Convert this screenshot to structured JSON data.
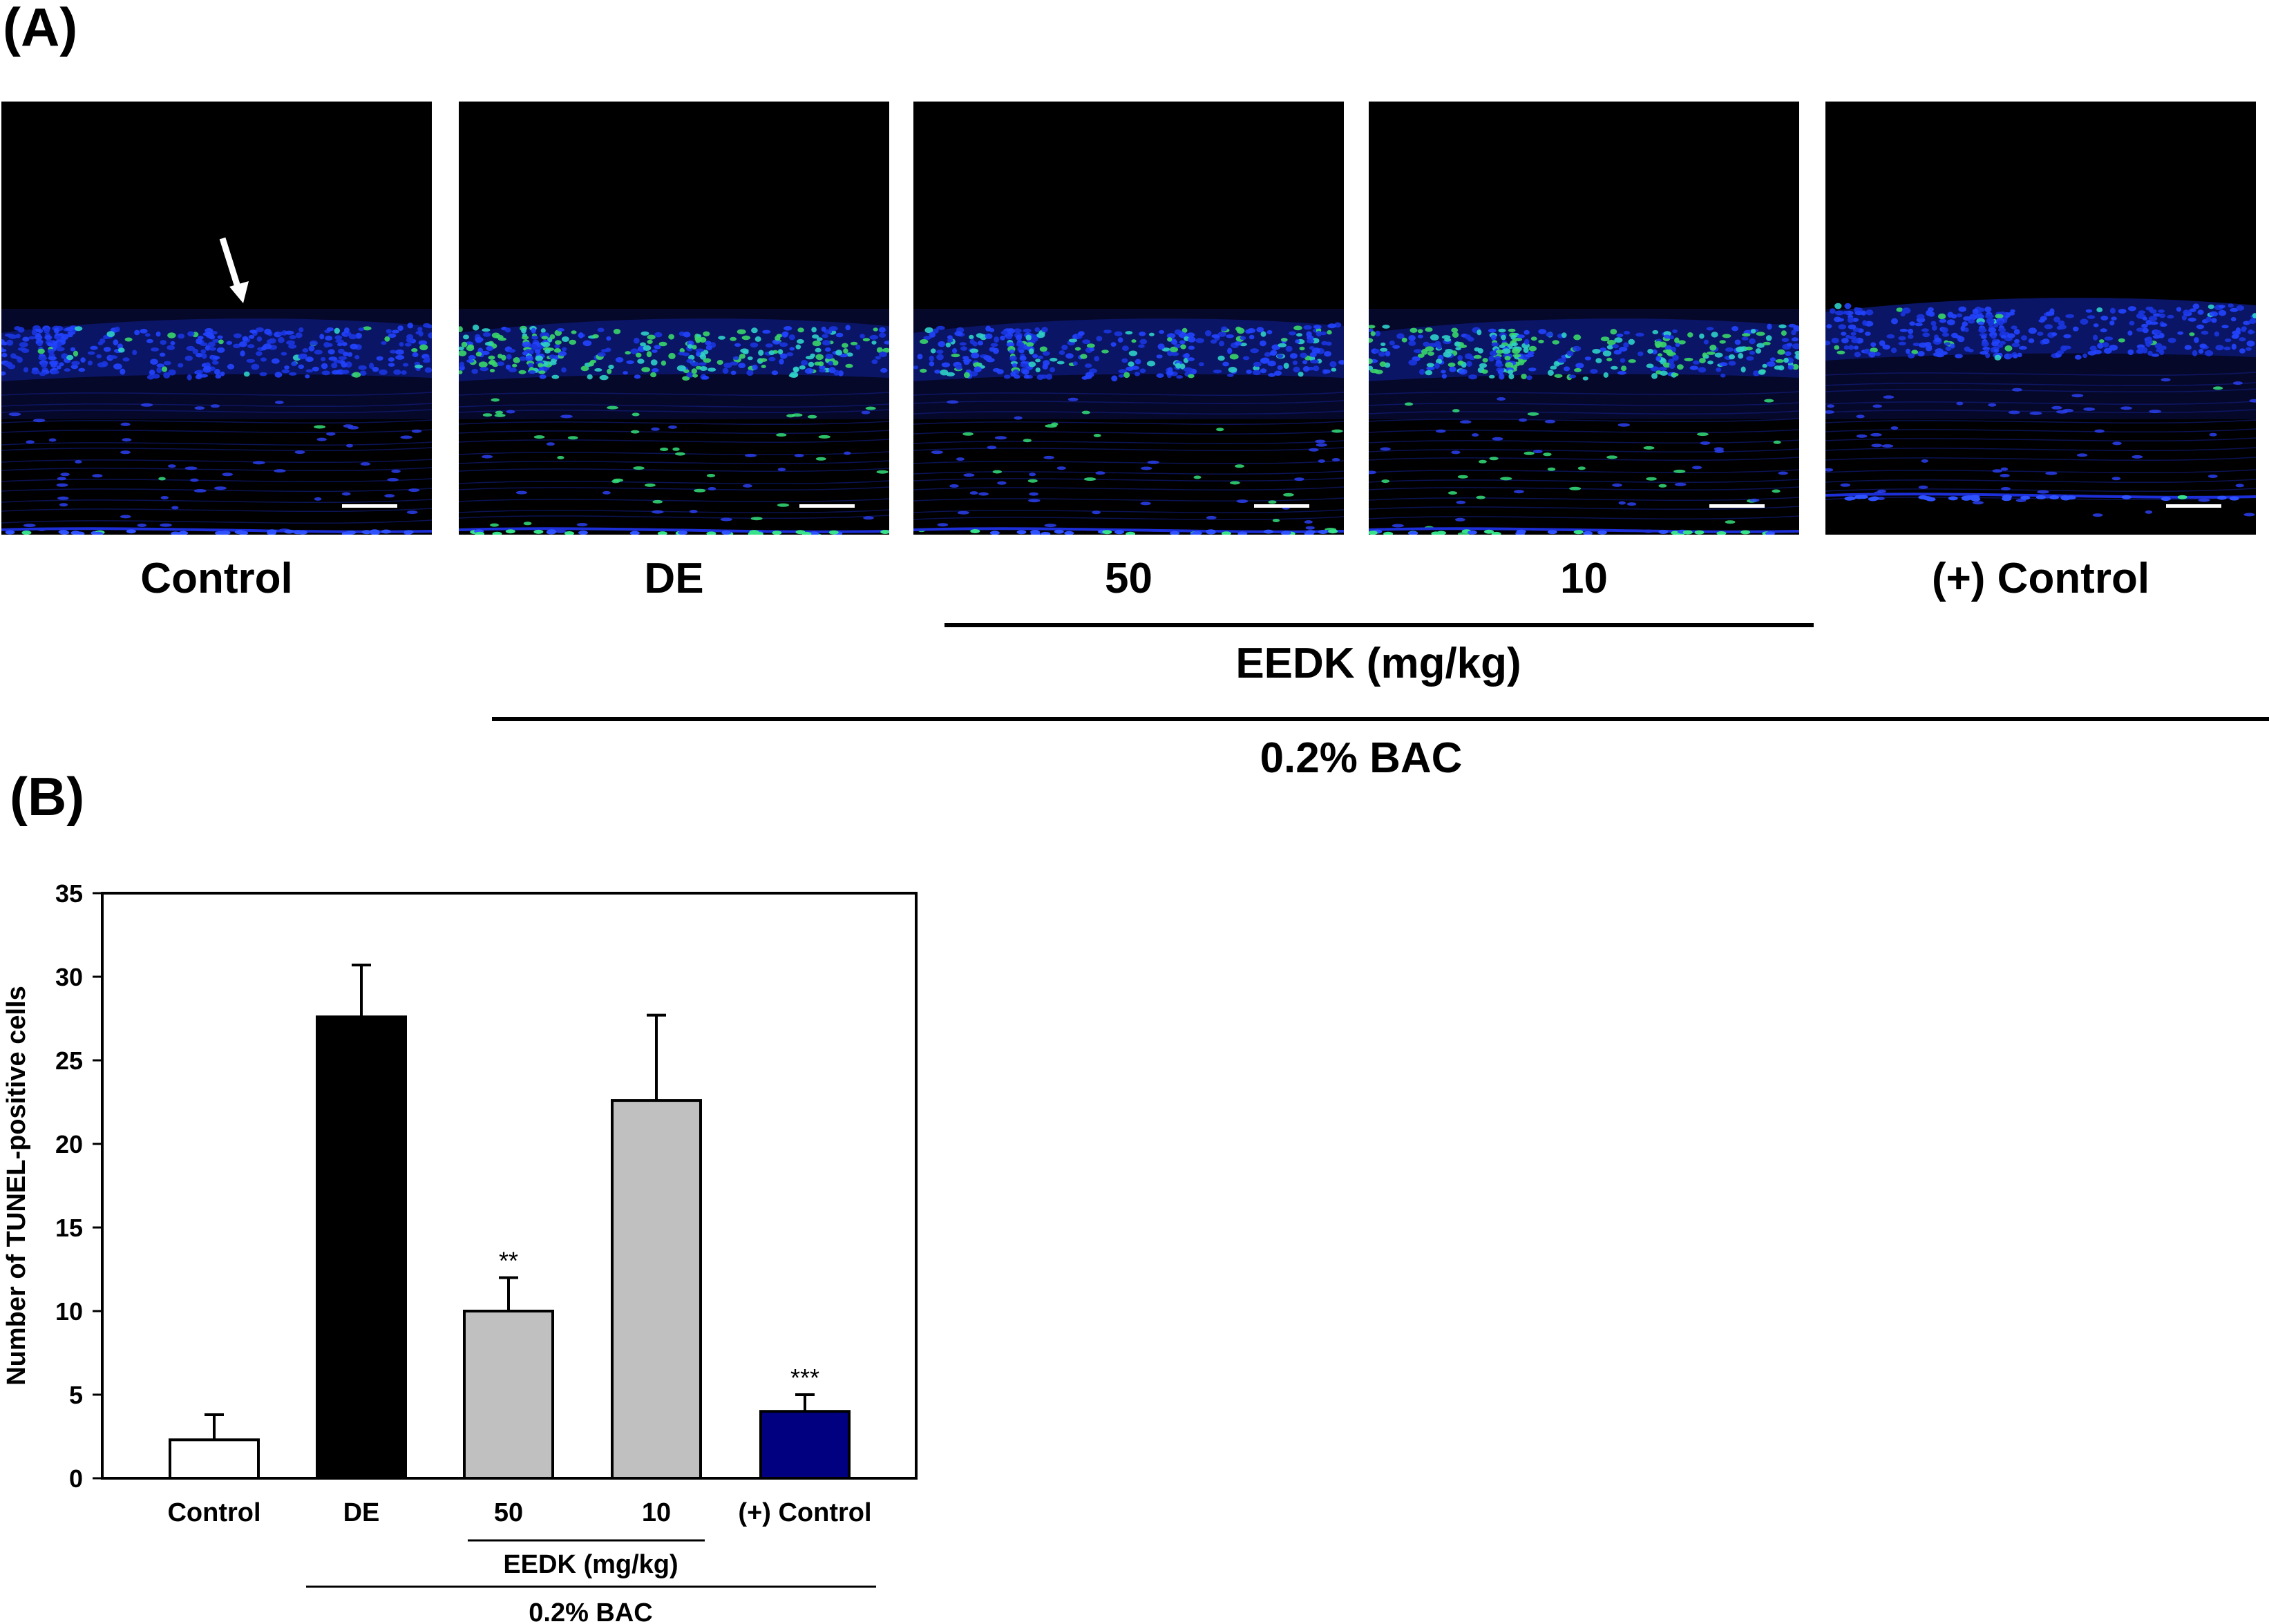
{
  "panel_a": {
    "letter": "(A)",
    "images": [
      {
        "label": "Control",
        "tissue": "normal",
        "arrow": true
      },
      {
        "label": "DE",
        "tissue": "damaged",
        "arrow": false
      },
      {
        "label": "50",
        "tissue": "treated",
        "arrow": false
      },
      {
        "label": "10",
        "tissue": "damaged",
        "arrow": false
      },
      {
        "label": "(+) Control",
        "tissue": "positive",
        "arrow": false
      }
    ],
    "eedk_label": "EEDK (mg/kg)",
    "bac_label": "0.2% BAC"
  },
  "panel_b": {
    "letter": "(B)"
  },
  "chart_data": {
    "type": "bar",
    "title": "",
    "xlabel": "",
    "ylabel": "Number of TUNEL-positive cells",
    "ylim": [
      0,
      35
    ],
    "yticks": [
      0,
      5,
      10,
      15,
      20,
      25,
      30,
      35
    ],
    "categories": [
      "Control",
      "DE",
      "50",
      "10",
      "(+) Control"
    ],
    "values": [
      2.3,
      27.6,
      10.0,
      22.6,
      4.0
    ],
    "errors": [
      1.5,
      3.1,
      2.0,
      5.1,
      1.0
    ],
    "significance": [
      "",
      "",
      "**",
      "",
      "***"
    ],
    "colors": [
      "#ffffff",
      "#000000",
      "#c0c0c0",
      "#c0c0c0",
      "#000080"
    ],
    "group_labels": {
      "eedk": "EEDK (mg/kg)",
      "bac": "0.2% BAC"
    }
  }
}
